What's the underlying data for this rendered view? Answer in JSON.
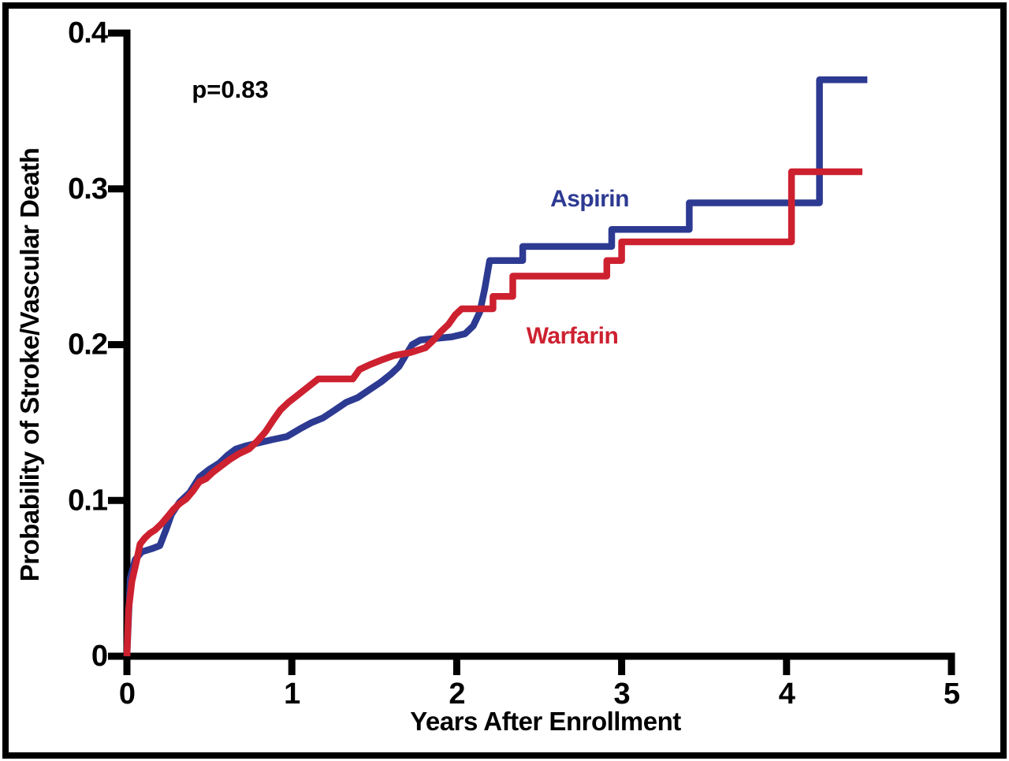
{
  "chart_data": {
    "type": "line",
    "subtype": "kaplan-meier-step",
    "title": "",
    "xlabel": "Years After Enrollment",
    "ylabel": "Probability of Stroke/Vascular Death",
    "annotation": "p=0.83",
    "xlim": [
      0,
      5
    ],
    "ylim": [
      0,
      0.4
    ],
    "x_ticks": [
      0,
      1,
      2,
      3,
      4,
      5
    ],
    "x_tick_labels": [
      "0",
      "1",
      "2",
      "3",
      "4",
      "5"
    ],
    "y_ticks": [
      0,
      0.1,
      0.2,
      0.3,
      0.4
    ],
    "y_tick_labels": [
      "0",
      "0.1",
      "0.2",
      "0.3",
      "0.4"
    ],
    "grid": false,
    "legend_position": "inline-labels",
    "axis_color": "#000000",
    "background_color": "#ffffff",
    "series": [
      {
        "name": "Aspirin",
        "color": "#2d3a92",
        "points": [
          [
            0,
            0
          ],
          [
            0.02,
            0.05
          ],
          [
            0.05,
            0.062
          ],
          [
            0.09,
            0.067
          ],
          [
            0.15,
            0.069
          ],
          [
            0.2,
            0.071
          ],
          [
            0.24,
            0.082
          ],
          [
            0.27,
            0.091
          ],
          [
            0.32,
            0.099
          ],
          [
            0.38,
            0.105
          ],
          [
            0.44,
            0.115
          ],
          [
            0.5,
            0.12
          ],
          [
            0.56,
            0.124
          ],
          [
            0.61,
            0.129
          ],
          [
            0.66,
            0.133
          ],
          [
            0.72,
            0.135
          ],
          [
            0.8,
            0.137
          ],
          [
            0.88,
            0.139
          ],
          [
            0.97,
            0.141
          ],
          [
            1.05,
            0.146
          ],
          [
            1.12,
            0.15
          ],
          [
            1.19,
            0.153
          ],
          [
            1.26,
            0.158
          ],
          [
            1.33,
            0.163
          ],
          [
            1.4,
            0.166
          ],
          [
            1.47,
            0.171
          ],
          [
            1.54,
            0.176
          ],
          [
            1.6,
            0.181
          ],
          [
            1.65,
            0.186
          ],
          [
            1.69,
            0.193
          ],
          [
            1.73,
            0.2
          ],
          [
            1.78,
            0.203
          ],
          [
            1.87,
            0.204
          ],
          [
            1.97,
            0.205
          ],
          [
            2.05,
            0.207
          ],
          [
            2.1,
            0.212
          ],
          [
            2.14,
            0.221
          ],
          [
            2.17,
            0.236
          ],
          [
            2.2,
            0.254
          ],
          [
            2.4,
            0.254
          ],
          [
            2.4,
            0.263
          ],
          [
            2.94,
            0.263
          ],
          [
            2.94,
            0.274
          ],
          [
            3.41,
            0.274
          ],
          [
            3.41,
            0.291
          ],
          [
            4.2,
            0.291
          ],
          [
            4.2,
            0.37
          ],
          [
            4.49,
            0.37
          ]
        ]
      },
      {
        "name": "Warfarin",
        "color": "#cd2130",
        "points": [
          [
            0,
            0
          ],
          [
            0.01,
            0.03
          ],
          [
            0.03,
            0.048
          ],
          [
            0.06,
            0.062
          ],
          [
            0.08,
            0.072
          ],
          [
            0.11,
            0.076
          ],
          [
            0.14,
            0.079
          ],
          [
            0.17,
            0.081
          ],
          [
            0.21,
            0.085
          ],
          [
            0.25,
            0.09
          ],
          [
            0.28,
            0.094
          ],
          [
            0.32,
            0.098
          ],
          [
            0.36,
            0.101
          ],
          [
            0.4,
            0.106
          ],
          [
            0.44,
            0.112
          ],
          [
            0.48,
            0.114
          ],
          [
            0.52,
            0.118
          ],
          [
            0.57,
            0.122
          ],
          [
            0.62,
            0.126
          ],
          [
            0.68,
            0.13
          ],
          [
            0.74,
            0.133
          ],
          [
            0.79,
            0.138
          ],
          [
            0.84,
            0.144
          ],
          [
            0.89,
            0.152
          ],
          [
            0.93,
            0.158
          ],
          [
            0.98,
            0.163
          ],
          [
            1.04,
            0.168
          ],
          [
            1.1,
            0.173
          ],
          [
            1.16,
            0.178
          ],
          [
            1.37,
            0.178
          ],
          [
            1.41,
            0.184
          ],
          [
            1.47,
            0.187
          ],
          [
            1.54,
            0.19
          ],
          [
            1.62,
            0.193
          ],
          [
            1.72,
            0.195
          ],
          [
            1.81,
            0.198
          ],
          [
            1.86,
            0.203
          ],
          [
            1.9,
            0.208
          ],
          [
            1.95,
            0.213
          ],
          [
            1.99,
            0.219
          ],
          [
            2.03,
            0.223
          ],
          [
            2.22,
            0.223
          ],
          [
            2.22,
            0.231
          ],
          [
            2.34,
            0.231
          ],
          [
            2.34,
            0.244
          ],
          [
            2.91,
            0.244
          ],
          [
            2.91,
            0.254
          ],
          [
            3.0,
            0.254
          ],
          [
            3.0,
            0.266
          ],
          [
            4.03,
            0.266
          ],
          [
            4.03,
            0.311
          ],
          [
            4.46,
            0.311
          ]
        ]
      }
    ]
  }
}
